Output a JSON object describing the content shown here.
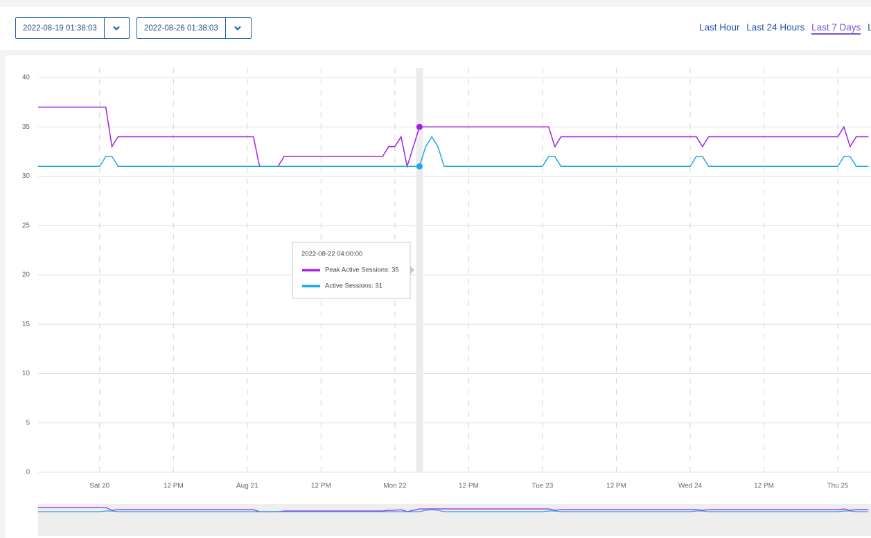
{
  "controls": {
    "start": "2022-08-19 01:38:03",
    "end": "2022-08-26 01:38:03",
    "ranges": [
      "Last Hour",
      "Last 24 Hours",
      "Last 7 Days",
      "La"
    ]
  },
  "chart_data": {
    "type": "line",
    "x": [
      "2022-08-19 14:00",
      "2022-08-20 00:00",
      "2022-08-20 01:00",
      "2022-08-20 02:00",
      "2022-08-20 03:00",
      "2022-08-21 01:00",
      "2022-08-21 02:00",
      "2022-08-21 05:00",
      "2022-08-21 06:00",
      "2022-08-21 22:00",
      "2022-08-21 23:00",
      "2022-08-22 00:00",
      "2022-08-22 01:00",
      "2022-08-22 02:00",
      "2022-08-22 03:00",
      "2022-08-22 04:00",
      "2022-08-22 05:00",
      "2022-08-22 06:00",
      "2022-08-22 07:00",
      "2022-08-22 08:00",
      "2022-08-23 00:00",
      "2022-08-23 01:00",
      "2022-08-23 02:00",
      "2022-08-23 03:00",
      "2022-08-24 00:00",
      "2022-08-24 01:00",
      "2022-08-24 02:00",
      "2022-08-24 03:00",
      "2022-08-25 00:00",
      "2022-08-25 01:00",
      "2022-08-25 02:00",
      "2022-08-25 03:00",
      "2022-08-25 05:00"
    ],
    "series": [
      {
        "color": "#a21fe6",
        "values": [
          37,
          37,
          37,
          33,
          34,
          34,
          31,
          31,
          32,
          32,
          33,
          33,
          34,
          31,
          33,
          35,
          35,
          35,
          35,
          35,
          35,
          35,
          33,
          34,
          34,
          34,
          33,
          34,
          34,
          35,
          33,
          34,
          34
        ]
      },
      {
        "color": "#1ca8e3",
        "values": [
          31,
          31,
          32,
          32,
          31,
          31,
          31,
          31,
          31,
          31,
          31,
          31,
          31,
          31,
          31,
          31,
          33,
          34,
          33,
          31,
          31,
          32,
          32,
          31,
          31,
          32,
          32,
          31,
          31,
          32,
          32,
          31,
          31
        ]
      }
    ],
    "xlim": [
      "2022-08-19 14:00",
      "2022-08-25 05:24"
    ],
    "xticks": [
      {
        "value": "2022-08-20 00:00",
        "label": "Sat 20"
      },
      {
        "value": "2022-08-20 12:00",
        "label": "12 PM"
      },
      {
        "value": "2022-08-21 00:00",
        "label": "Aug 21"
      },
      {
        "value": "2022-08-21 12:00",
        "label": "12 PM"
      },
      {
        "value": "2022-08-22 00:00",
        "label": "Mon 22"
      },
      {
        "value": "2022-08-22 12:00",
        "label": "12 PM"
      },
      {
        "value": "2022-08-23 00:00",
        "label": "Tue 23"
      },
      {
        "value": "2022-08-23 12:00",
        "label": "12 PM"
      },
      {
        "value": "2022-08-24 00:00",
        "label": "Wed 24"
      },
      {
        "value": "2022-08-24 12:00",
        "label": "12 PM"
      },
      {
        "value": "2022-08-25 00:00",
        "label": "Thu 25"
      }
    ],
    "ylim": [
      0,
      40
    ],
    "yticks": [
      0,
      5,
      10,
      15,
      20,
      25,
      30,
      35,
      40
    ],
    "grid": true,
    "tooltip": {
      "x_index": 15,
      "title": "2022-08-22 04:00:00",
      "items": [
        "Peak Active Sessions: 35",
        "Active Sessions: 31"
      ]
    }
  }
}
